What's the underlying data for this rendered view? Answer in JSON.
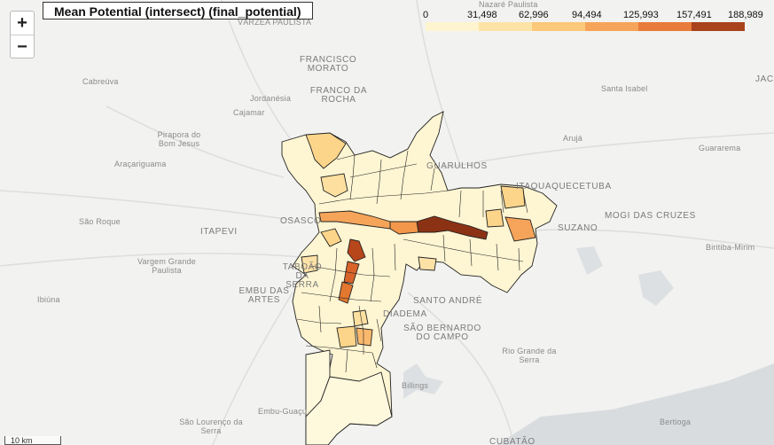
{
  "title": "Mean Potential (intersect) (final_potential)",
  "zoom": {
    "in_label": "+",
    "out_label": "−"
  },
  "legend": {
    "ticks": [
      "0",
      "31,498",
      "62,996",
      "94,494",
      "125,993",
      "157,491",
      "188,989"
    ],
    "colors": [
      "#fef4cf",
      "#fde4a6",
      "#fcc97a",
      "#f6a45a",
      "#e97b3a",
      "#c75c2b",
      "#a8431c"
    ]
  },
  "scale_label": "10 km",
  "places": [
    {
      "name": "Nazaré Paulista"
    },
    {
      "name": "VÁRZEA PAULISTA"
    },
    {
      "name": "FRANCISCO MORATO"
    },
    {
      "name": "Cabreúva"
    },
    {
      "name": "Jordanésia"
    },
    {
      "name": "FRANCO DA ROCHA"
    },
    {
      "name": "Cajamar"
    },
    {
      "name": "Pirapora do Bom Jesus"
    },
    {
      "name": "Santa Isabel"
    },
    {
      "name": "Arujá"
    },
    {
      "name": "Guararema"
    },
    {
      "name": "Araçariguama"
    },
    {
      "name": "GUARULHOS"
    },
    {
      "name": "ITAQUAQUECETUBA"
    },
    {
      "name": "São Roque"
    },
    {
      "name": "OSASCO"
    },
    {
      "name": "MOGI DAS CRUZES"
    },
    {
      "name": "ITAPEVI"
    },
    {
      "name": "SUZANO"
    },
    {
      "name": "Biritiba-Mirim"
    },
    {
      "name": "Vargem Grande Paulista"
    },
    {
      "name": "TABOÃO DA SERRA"
    },
    {
      "name": "EMBU DAS ARTES"
    },
    {
      "name": "Ibiúna"
    },
    {
      "name": "SANTO ANDRÉ"
    },
    {
      "name": "DIADEMA"
    },
    {
      "name": "SÃO BERNARDO DO CAMPO"
    },
    {
      "name": "Rio Grande da Serra"
    },
    {
      "name": "Billings"
    },
    {
      "name": "Embu-Guaçu"
    },
    {
      "name": "São Lourenço da Serra"
    },
    {
      "name": "Bertioga"
    },
    {
      "name": "JACAREÍ"
    },
    {
      "name": "CUBATÃO"
    }
  ]
}
